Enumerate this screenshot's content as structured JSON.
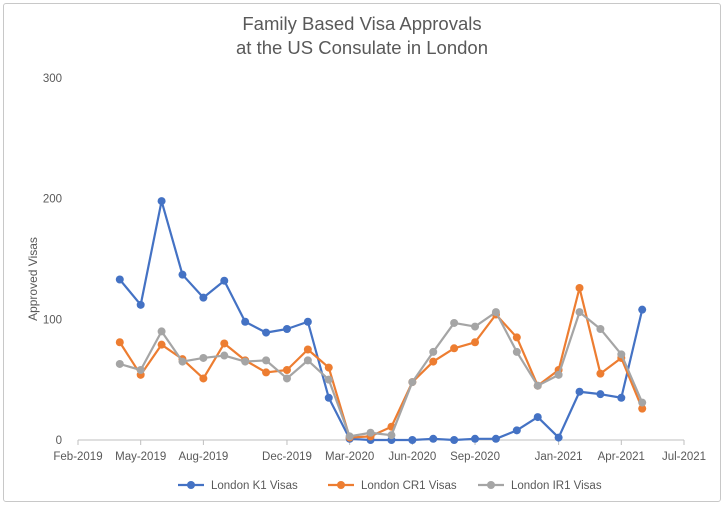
{
  "chart_data": {
    "type": "line",
    "title": "Family Based Visa Approvals",
    "subtitle": "at the US Consulate in London",
    "xlabel": "",
    "ylabel": "Approved Visas",
    "ylim": [
      0,
      300
    ],
    "yticks": [
      0,
      100,
      200,
      300
    ],
    "xticks": [
      "Feb-2019",
      "May-2019",
      "Aug-2019",
      "Dec-2019",
      "Mar-2020",
      "Jun-2020",
      "Sep-2020",
      "Jan-2021",
      "Apr-2021",
      "Jul-2021"
    ],
    "x": [
      "Apr-2019",
      "May-2019",
      "Jun-2019",
      "Jul-2019",
      "Aug-2019",
      "Sep-2019",
      "Oct-2019",
      "Nov-2019",
      "Dec-2019",
      "Jan-2020",
      "Feb-2020",
      "Mar-2020",
      "Apr-2020",
      "May-2020",
      "Jun-2020",
      "Jul-2020",
      "Aug-2020",
      "Sep-2020",
      "Oct-2020",
      "Nov-2020",
      "Dec-2020",
      "Jan-2021",
      "Feb-2021",
      "Mar-2021",
      "Apr-2021",
      "May-2021"
    ],
    "grid": false,
    "legend_position": "bottom",
    "series": [
      {
        "name": "London K1 Visas",
        "color": "#4472C4",
        "values": [
          133,
          112,
          198,
          137,
          118,
          132,
          98,
          89,
          92,
          98,
          35,
          1,
          0,
          0,
          0,
          1,
          0,
          1,
          1,
          8,
          19,
          2,
          40,
          38,
          35,
          108
        ]
      },
      {
        "name": "London CR1 Visas",
        "color": "#ED7D31",
        "values": [
          81,
          54,
          79,
          67,
          51,
          80,
          66,
          56,
          58,
          75,
          60,
          2,
          3,
          11,
          48,
          65,
          76,
          81,
          104,
          85,
          45,
          58,
          126,
          55,
          68,
          26
        ]
      },
      {
        "name": "London IR1 Visas",
        "color": "#A5A5A5",
        "values": [
          63,
          58,
          90,
          65,
          68,
          70,
          65,
          66,
          51,
          66,
          50,
          3,
          6,
          4,
          48,
          73,
          97,
          94,
          106,
          73,
          45,
          54,
          106,
          92,
          71,
          31
        ]
      }
    ]
  }
}
